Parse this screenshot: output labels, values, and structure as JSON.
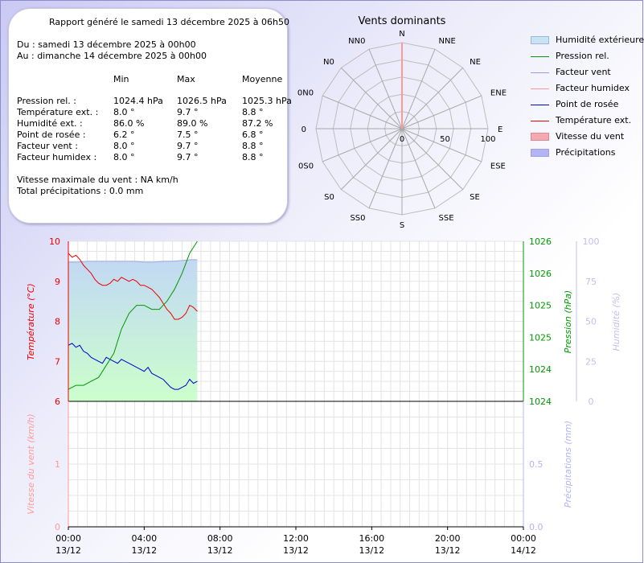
{
  "summary": {
    "title": "Rapport généré le samedi 13 décembre 2025 à 06h50",
    "from": "Du : samedi 13 décembre 2025 à 00h00",
    "to": "Au : dimanche 14 décembre 2025 à 00h00",
    "headers": {
      "min": "Min",
      "max": "Max",
      "avg": "Moyenne"
    },
    "rows": [
      {
        "label": "Pression rel. :",
        "min": "1024.4 hPa",
        "max": "1026.5 hPa",
        "avg": "1025.3 hPa"
      },
      {
        "label": "Température ext. :",
        "min": "8.0 °",
        "max": "9.7 °",
        "avg": "8.8 °"
      },
      {
        "label": "Humidité ext. :",
        "min": "86.0 %",
        "max": "89.0 %",
        "avg": "87.2 %"
      },
      {
        "label": "Point de rosée :",
        "min": "6.2 °",
        "max": "7.5 °",
        "avg": "6.8 °"
      },
      {
        "label": "Facteur vent :",
        "min": "8.0 °",
        "max": "9.7 °",
        "avg": "8.8 °"
      },
      {
        "label": "Facteur humidex :",
        "min": "8.0 °",
        "max": "9.7 °",
        "avg": "8.8 °"
      }
    ],
    "max_wind": "Vitesse maximale du vent : NA km/h",
    "total_rain": "Total précipitations : 0.0 mm"
  },
  "legend": [
    {
      "label": "Humidité extérieure",
      "color": "#c8e4f4",
      "border": "#9ab8d8",
      "kind": "fill"
    },
    {
      "label": "Pression rel.",
      "color": "#009900",
      "kind": "line"
    },
    {
      "label": "Facteur vent",
      "color": "#9999ee",
      "kind": "line"
    },
    {
      "label": "Facteur humidex",
      "color": "#ff9999",
      "kind": "line"
    },
    {
      "label": "Point de rosée",
      "color": "#0000cc",
      "kind": "line"
    },
    {
      "label": "Température ext.",
      "color": "#ee0000",
      "kind": "line"
    },
    {
      "label": "Vitesse du vent",
      "color": "#f4a8b0",
      "border": "#e08890",
      "kind": "fill"
    },
    {
      "label": "Précipitations",
      "color": "#b4b4f4",
      "border": "#a0a0e8",
      "kind": "fill"
    }
  ],
  "chart_data": [
    {
      "type": "radar",
      "title": "Vents dominants",
      "directions": [
        "N",
        "NNE",
        "NE",
        "ENE",
        "E",
        "ESE",
        "SE",
        "SSE",
        "S",
        "SS0",
        "S0",
        "0S0",
        "0",
        "0N0",
        "N0",
        "NN0"
      ],
      "radial_ticks": [
        "0",
        "50",
        "100"
      ],
      "radial_range": [
        0,
        100
      ],
      "values": [
        100,
        0,
        0,
        0,
        0,
        0,
        0,
        0,
        0,
        0,
        0,
        0,
        0,
        0,
        0,
        0
      ],
      "series_color": "#ff9999"
    },
    {
      "type": "line",
      "x_ticks": [
        {
          "value": 0,
          "time": "00:00",
          "date": "13/12"
        },
        {
          "value": 4,
          "time": "04:00",
          "date": "13/12"
        },
        {
          "value": 8,
          "time": "08:00",
          "date": "13/12"
        },
        {
          "value": 12,
          "time": "12:00",
          "date": "13/12"
        },
        {
          "value": 16,
          "time": "16:00",
          "date": "13/12"
        },
        {
          "value": 20,
          "time": "20:00",
          "date": "13/12"
        },
        {
          "value": 24,
          "time": "00:00",
          "date": "14/12"
        }
      ],
      "xlim": [
        0,
        24
      ],
      "axes": {
        "temperature": {
          "label": "Température (°C)",
          "range": [
            6,
            10
          ],
          "ticks": [
            "6",
            "7",
            "8",
            "9",
            "10"
          ],
          "color": "#ee0000"
        },
        "pressure": {
          "label": "Pression (hPa)",
          "range": [
            1024,
            1026
          ],
          "ticks": [
            "1024",
            "1024",
            "1025",
            "1025",
            "1026",
            "1026"
          ],
          "color": "#009900"
        },
        "humidity": {
          "label": "Humidité (%)",
          "range": [
            0,
            100
          ],
          "ticks": [
            "0",
            "25",
            "50",
            "75",
            "100"
          ],
          "color": "#c0c0ec"
        },
        "wind": {
          "label": "Vitesse du vent (km/h)",
          "range": [
            0,
            2
          ],
          "ticks": [
            "0",
            "1"
          ],
          "color": "#ff9999"
        },
        "rain": {
          "label": "Précipitations (mm)",
          "range": [
            0,
            1
          ],
          "ticks": [
            "0.0",
            "0.5"
          ],
          "color": "#b4b4f4"
        }
      },
      "series": [
        {
          "name": "Température ext.",
          "axis": "temperature",
          "color": "#ee0000",
          "x": [
            0,
            0.2,
            0.4,
            0.6,
            0.8,
            1.0,
            1.2,
            1.4,
            1.6,
            1.8,
            2.0,
            2.2,
            2.4,
            2.6,
            2.8,
            3.0,
            3.2,
            3.4,
            3.6,
            3.8,
            4.0,
            4.2,
            4.4,
            4.6,
            4.8,
            5.0,
            5.2,
            5.4,
            5.6,
            5.8,
            6.0,
            6.2,
            6.4,
            6.6,
            6.8
          ],
          "y": [
            9.7,
            9.6,
            9.65,
            9.55,
            9.4,
            9.3,
            9.2,
            9.05,
            8.95,
            8.9,
            8.9,
            8.95,
            9.05,
            9.0,
            9.1,
            9.05,
            9.0,
            9.05,
            9.0,
            8.9,
            8.9,
            8.85,
            8.8,
            8.7,
            8.6,
            8.45,
            8.3,
            8.2,
            8.05,
            8.05,
            8.1,
            8.2,
            8.4,
            8.35,
            8.25
          ]
        },
        {
          "name": "Point de rosée",
          "axis": "temperature",
          "color": "#0000cc",
          "x": [
            0,
            0.2,
            0.4,
            0.6,
            0.8,
            1.0,
            1.2,
            1.4,
            1.6,
            1.8,
            2.0,
            2.2,
            2.4,
            2.6,
            2.8,
            3.0,
            3.2,
            3.4,
            3.6,
            3.8,
            4.0,
            4.2,
            4.4,
            4.6,
            4.8,
            5.0,
            5.2,
            5.4,
            5.6,
            5.8,
            6.0,
            6.2,
            6.4,
            6.6,
            6.8
          ],
          "y": [
            7.4,
            7.45,
            7.35,
            7.4,
            7.25,
            7.2,
            7.1,
            7.05,
            7.0,
            6.95,
            7.1,
            7.05,
            7.0,
            6.95,
            7.05,
            7.0,
            6.95,
            6.9,
            6.85,
            6.8,
            6.75,
            6.85,
            6.7,
            6.65,
            6.6,
            6.55,
            6.45,
            6.35,
            6.3,
            6.3,
            6.35,
            6.4,
            6.55,
            6.45,
            6.5
          ]
        },
        {
          "name": "Pression rel.",
          "axis": "pressure",
          "color": "#009900",
          "x": [
            0,
            0.4,
            0.8,
            1.2,
            1.6,
            2.0,
            2.4,
            2.8,
            3.2,
            3.6,
            4.0,
            4.4,
            4.8,
            5.2,
            5.6,
            6.0,
            6.4,
            6.8
          ],
          "y": [
            1024.15,
            1024.2,
            1024.2,
            1024.25,
            1024.3,
            1024.45,
            1024.6,
            1024.9,
            1025.1,
            1025.2,
            1025.2,
            1025.15,
            1025.15,
            1025.25,
            1025.4,
            1025.6,
            1025.85,
            1026.0
          ]
        },
        {
          "name": "Humidité extérieure",
          "axis": "humidity",
          "color": "#c8e4f4",
          "x": [
            0,
            0.5,
            1.0,
            1.5,
            2.0,
            2.5,
            3.0,
            3.5,
            4.0,
            4.5,
            5.0,
            5.5,
            6.0,
            6.5,
            6.8
          ],
          "y": [
            87,
            87,
            87.5,
            87.5,
            87.5,
            87.5,
            87.5,
            87.5,
            87,
            87,
            87.5,
            87.5,
            88,
            88.5,
            88.5
          ]
        }
      ]
    }
  ]
}
